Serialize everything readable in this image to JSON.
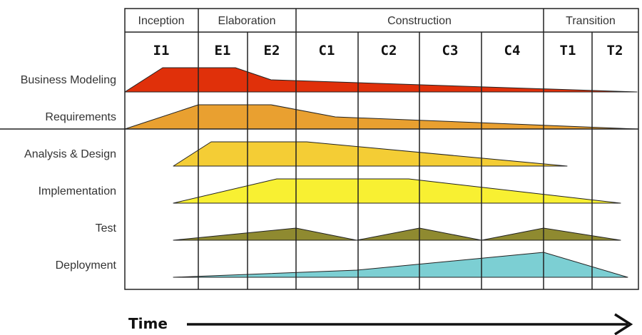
{
  "phases": [
    {
      "label": "Inception"
    },
    {
      "label": "Elaboration"
    },
    {
      "label": "Construction"
    },
    {
      "label": "Transition"
    }
  ],
  "iterations": [
    "I1",
    "E1",
    "E2",
    "C1",
    "C2",
    "C3",
    "C4",
    "T1",
    "T2"
  ],
  "disciplines": [
    {
      "label": "Business Modeling",
      "color": "#e0300a"
    },
    {
      "label": "Requirements",
      "color": "#e9a030"
    },
    {
      "label": "Analysis & Design",
      "color": "#f4cd35"
    },
    {
      "label": "Implementation",
      "color": "#f8f032"
    },
    {
      "label": "Test",
      "color": "#8f8a30"
    },
    {
      "label": "Deployment",
      "color": "#7ccfd3"
    }
  ],
  "time_label": "Time"
}
